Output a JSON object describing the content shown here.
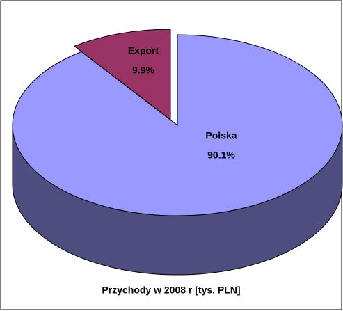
{
  "chart_data": {
    "type": "pie3d",
    "title": "Przychody w 2008 r [tys. PLN]",
    "categories": [
      "Polska",
      "Export"
    ],
    "values": [
      90.1,
      9.9
    ],
    "value_labels": [
      "90.1%",
      "9.9%"
    ],
    "colors": [
      "#9999ff",
      "#993366"
    ]
  }
}
